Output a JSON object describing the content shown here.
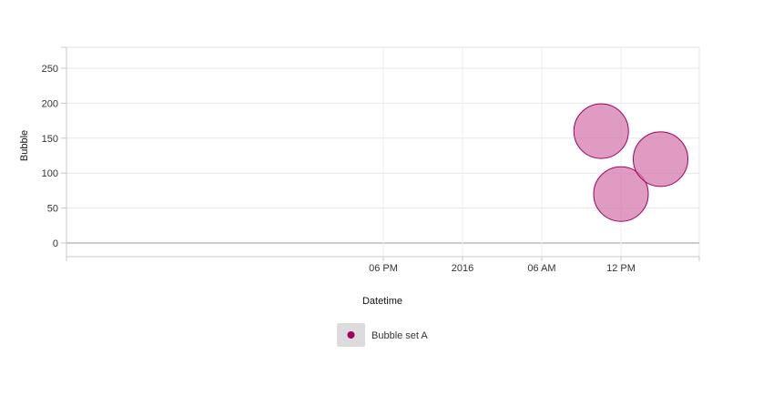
{
  "chart_data": {
    "type": "scatter",
    "variant": "bubble",
    "title": "",
    "xlabel": "Datetime",
    "ylabel": "Bubble",
    "x_tick_labels": [
      "06 PM",
      "2016",
      "06 AM",
      "12 PM"
    ],
    "y_ticks": [
      0,
      50,
      100,
      150,
      200,
      250
    ],
    "ylim": [
      -20,
      280
    ],
    "xlim_hours": [
      -21,
      14.5
    ],
    "grid": true,
    "legend_position": "bottom-center",
    "series": [
      {
        "name": "Bubble set A",
        "color": "#a0005e",
        "fill": "#d479ae",
        "points": [
          {
            "x": "2016-01-01 10:30",
            "y": 160,
            "size": 30
          },
          {
            "x": "2016-01-01 12:00",
            "y": 70,
            "size": 30
          },
          {
            "x": "2016-01-01 15:00",
            "y": 120,
            "size": 30
          }
        ]
      }
    ]
  }
}
